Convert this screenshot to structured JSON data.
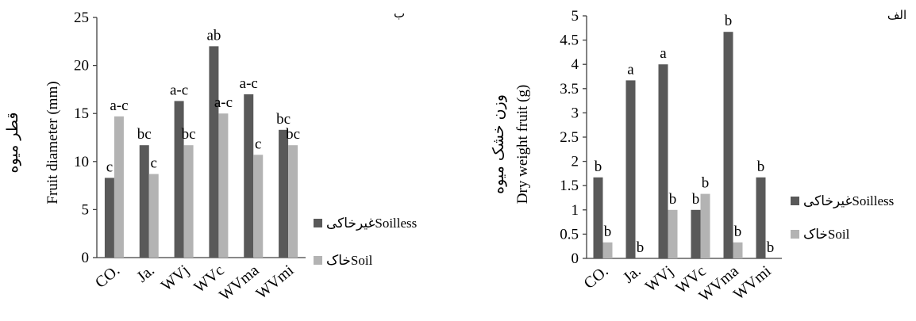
{
  "chart_data": [
    {
      "type": "bar",
      "panel_label": "ب",
      "ylabel_fa": "قطر میوه",
      "ylabel_en": "Fruit diameter (mm)",
      "ylim": [
        0,
        25
      ],
      "yticks": [
        "0",
        "5",
        "10",
        "15",
        "20",
        "25"
      ],
      "categories": [
        "CO.",
        "Ja.",
        "WVj",
        "WVc",
        "WVma",
        "WVmi"
      ],
      "series": [
        {
          "name": "Soilless",
          "name_fa": "غیرخاکی",
          "color": "#595959",
          "values": [
            8.3,
            11.7,
            16.3,
            22.0,
            17.0,
            13.3
          ],
          "labels": [
            "c",
            "bc",
            "a-c",
            "ab",
            "a-c",
            "bc"
          ]
        },
        {
          "name": "Soil",
          "name_fa": "خاک",
          "color": "#b3b3b3",
          "values": [
            14.7,
            8.7,
            11.7,
            15.0,
            10.7,
            11.7
          ],
          "labels": [
            "a-c",
            "c",
            "bc",
            "a-c",
            "c",
            "bc"
          ]
        }
      ],
      "legend_position": "right"
    },
    {
      "type": "bar",
      "panel_label": "الف",
      "ylabel_fa": "وزن خشک میوه",
      "ylabel_en": "Dry weight fruit (g)",
      "ylim": [
        0,
        5
      ],
      "yticks": [
        "0",
        "0.5",
        "1",
        "1.5",
        "2",
        "2.5",
        "3",
        "3.5",
        "4",
        "4.5",
        "5"
      ],
      "categories": [
        "CO.",
        "Ja.",
        "WVj",
        "WVc",
        "WVma",
        "WVmi"
      ],
      "series": [
        {
          "name": "Soilless",
          "name_fa": "غیرخاکی",
          "color": "#595959",
          "values": [
            1.67,
            3.67,
            4.0,
            1.0,
            4.67,
            1.67
          ],
          "labels": [
            "b",
            "a",
            "a",
            "b",
            "b",
            "b"
          ]
        },
        {
          "name": "Soil",
          "name_fa": "خاک",
          "color": "#b3b3b3",
          "values": [
            0.33,
            0,
            1.0,
            1.33,
            0.33,
            0
          ],
          "labels": [
            "b",
            "b",
            "b",
            "b",
            "b",
            "b"
          ]
        }
      ],
      "legend_position": "right"
    }
  ]
}
